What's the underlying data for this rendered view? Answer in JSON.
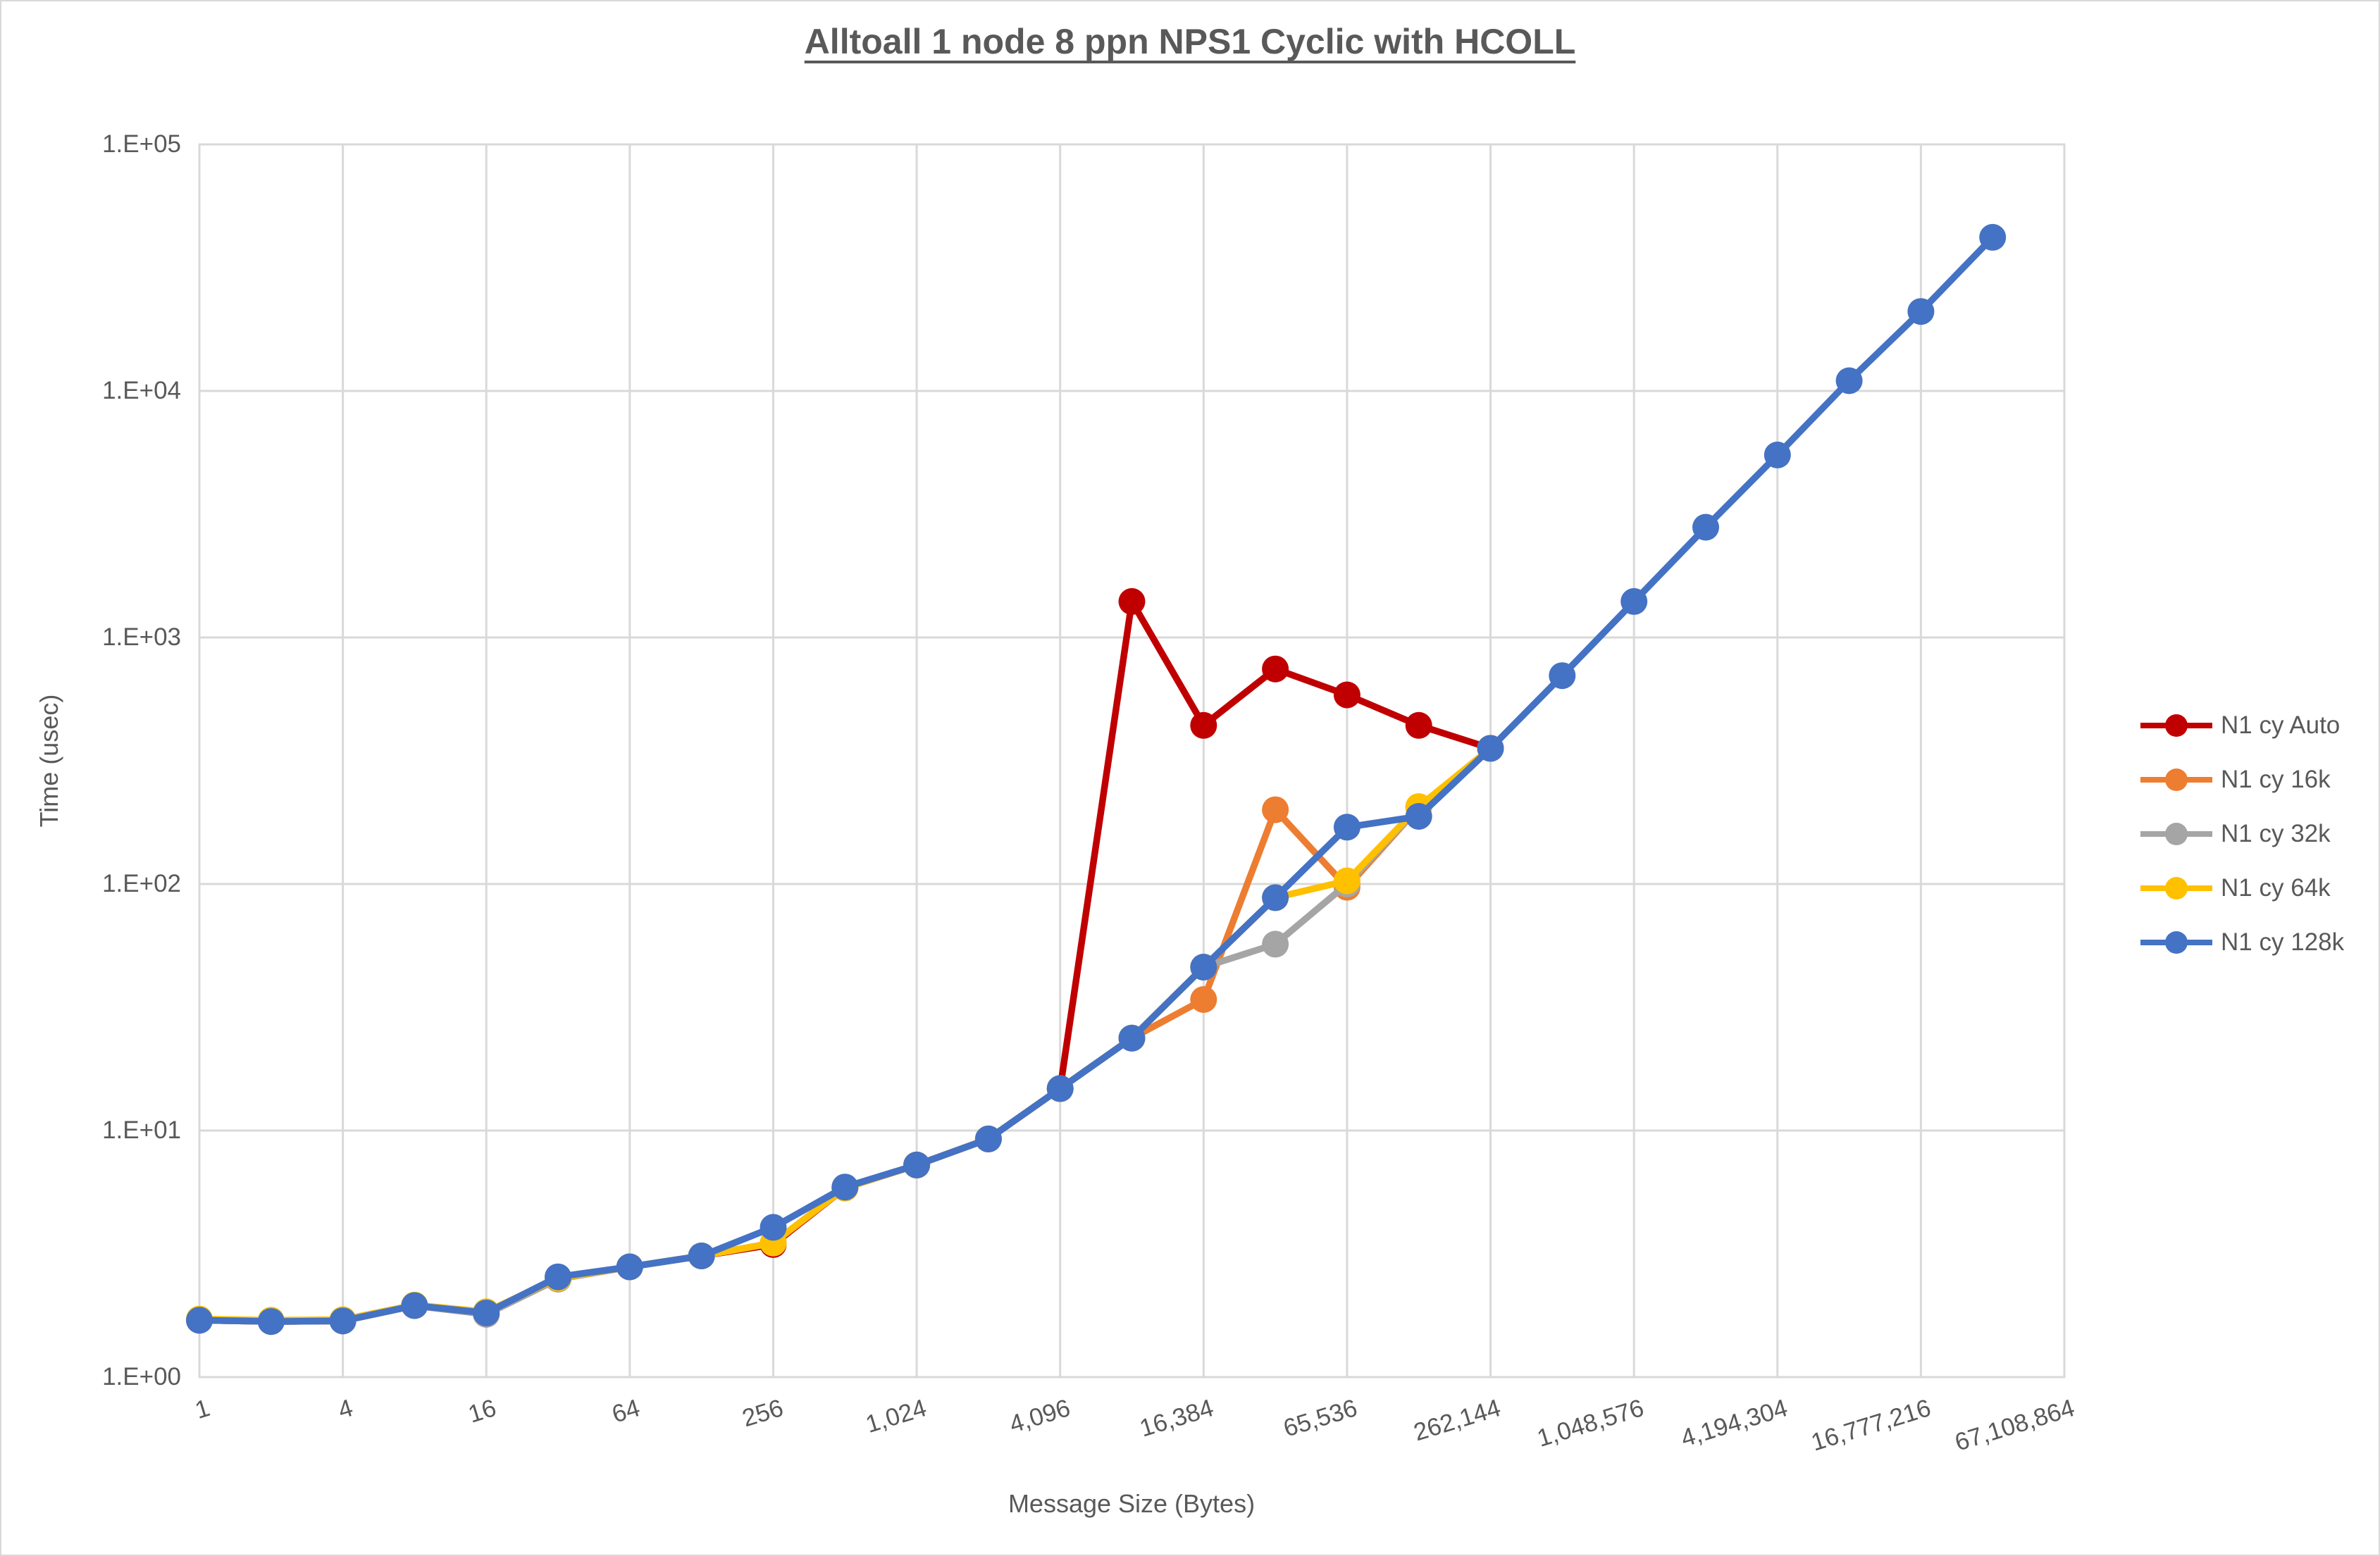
{
  "title": "Alltoall 1 node 8 ppn NPS1 Cyclic with HCOLL",
  "x_axis": {
    "title": "Message Size (Bytes)",
    "tick_labels": [
      "1",
      "4",
      "16",
      "64",
      "256",
      "1,024",
      "4,096",
      "16,384",
      "65,536",
      "262,144",
      "1,048,576",
      "4,194,304",
      "16,777,216",
      "67,108,864"
    ]
  },
  "y_axis": {
    "title": "Time (usec)",
    "tick_labels": [
      "1.E+00",
      "1.E+01",
      "1.E+02",
      "1.E+03",
      "1.E+04",
      "1.E+05"
    ]
  },
  "colors": {
    "gridline": "#d9d9d9",
    "plot_border": "#d9d9d9",
    "text": "#595959"
  },
  "chart_data": {
    "type": "line",
    "x_scale": "log2",
    "y_scale": "log10",
    "xlim": [
      1,
      67108864
    ],
    "ylim": [
      1,
      100000
    ],
    "grid": true,
    "legend_position": "right",
    "title": "Alltoall 1 node 8 ppn NPS1 Cyclic with HCOLL",
    "xlabel": "Message Size (Bytes)",
    "ylabel": "Time (usec)",
    "x": [
      1,
      2,
      4,
      8,
      16,
      32,
      64,
      128,
      256,
      512,
      1024,
      2048,
      4096,
      8192,
      16384,
      32768,
      65536,
      131072,
      262144,
      524288,
      1048576,
      2097152,
      4194304,
      8388608,
      16777216,
      33554432
    ],
    "series": [
      {
        "name": "N1 cy Auto",
        "color": "#C00000",
        "values": [
          1.7,
          1.68,
          1.69,
          1.95,
          1.8,
          2.5,
          2.8,
          3.1,
          3.45,
          5.85,
          7.25,
          9.25,
          14.8,
          1400,
          440,
          745,
          585,
          440,
          355
        ]
      },
      {
        "name": "N1 cy 16k",
        "color": "#ED7D31",
        "values": [
          1.7,
          1.68,
          1.69,
          1.95,
          1.8,
          2.5,
          2.8,
          3.1,
          3.5,
          5.85,
          7.25,
          9.25,
          14.8,
          23.7,
          34,
          200,
          97,
          205,
          355
        ]
      },
      {
        "name": "N1 cy 32k",
        "color": "#A5A5A5",
        "values": [
          1.7,
          1.68,
          1.69,
          1.95,
          1.8,
          2.5,
          2.8,
          3.1,
          3.5,
          5.85,
          7.25,
          9.25,
          14.8,
          23.7,
          46,
          57,
          100,
          205,
          355
        ]
      },
      {
        "name": "N1 cy 64k",
        "color": "#FFC000",
        "values": [
          1.72,
          1.7,
          1.71,
          1.96,
          1.84,
          2.52,
          2.8,
          3.1,
          3.5,
          5.85,
          7.25,
          9.25,
          14.8,
          23.7,
          46,
          88,
          103,
          206,
          355
        ]
      },
      {
        "name": "N1 cy 128k",
        "color": "#4472C4",
        "values": [
          1.7,
          1.68,
          1.69,
          1.95,
          1.82,
          2.55,
          2.8,
          3.1,
          4.05,
          5.9,
          7.25,
          9.25,
          14.8,
          23.7,
          46,
          88,
          170,
          188,
          355,
          700,
          1400,
          2800,
          5500,
          11000,
          21000,
          42000
        ]
      }
    ]
  }
}
